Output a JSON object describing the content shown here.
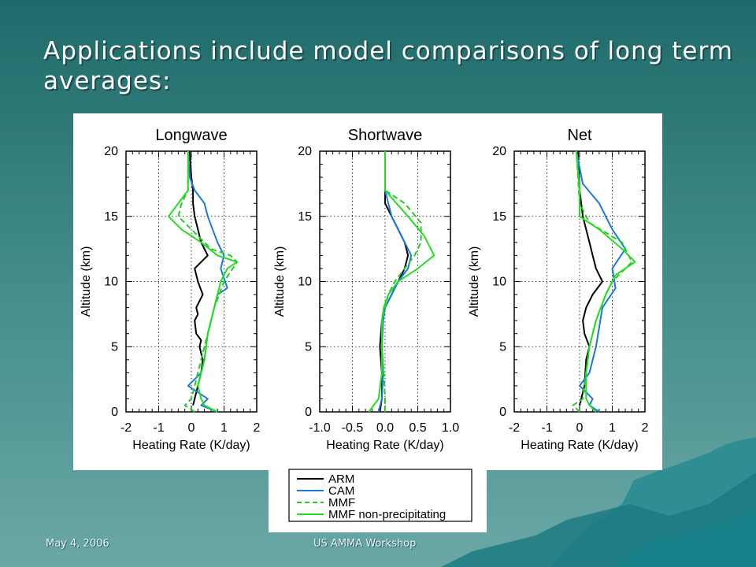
{
  "slide": {
    "title": "Applications include model comparisons of long term averages:",
    "footer_date": "May 4, 2006",
    "footer_event": "US AMMA Workshop"
  },
  "colors": {
    "ARM": "#000000",
    "CAM": "#1a78e0",
    "MMF": "#22cc22",
    "MMF non-precipitating": "#22dd22"
  },
  "chart_data": [
    {
      "type": "line",
      "title": "Longwave",
      "xlabel": "Heating Rate (K/day)",
      "ylabel": "Altitude (km)",
      "xlim": [
        -2,
        2
      ],
      "ylim": [
        0,
        20
      ],
      "xticks": [
        -2,
        -1,
        0,
        1,
        2
      ],
      "xtick_labels": [
        "-2",
        "-1",
        "0",
        "1",
        "2"
      ],
      "yticks": [
        0,
        5,
        10,
        15,
        20
      ],
      "yticks_labels": [
        "0",
        "5",
        "10",
        "15",
        "20"
      ],
      "grid": true,
      "series": [
        {
          "name": "ARM",
          "style": "solid",
          "color": "#000000",
          "x": [
            0.05,
            0.1,
            0.2,
            0.3,
            0.35,
            0.3,
            0.25,
            0.3,
            0.15,
            0.1,
            0.2,
            0.15,
            0.35,
            0.2,
            0.1,
            0.5,
            0.3,
            0.2,
            0.1,
            0.05,
            0.05,
            0.0,
            -0.05
          ],
          "y": [
            0.5,
            1,
            2,
            3,
            4,
            4.5,
            5,
            5.5,
            6,
            7,
            7.5,
            8,
            9,
            10,
            11,
            12,
            13,
            14,
            15,
            16,
            17,
            18,
            20
          ]
        },
        {
          "name": "CAM",
          "style": "solid",
          "color": "#1a78e0",
          "x": [
            0.8,
            0.3,
            0.5,
            0.2,
            -0.1,
            0.3,
            0.4,
            0.5,
            0.7,
            0.8,
            1.1,
            0.9,
            1.0,
            0.8,
            0.5,
            0.4,
            0.1,
            -0.05,
            -0.1
          ],
          "y": [
            0,
            0.5,
            1,
            1.5,
            2,
            3,
            4,
            6,
            8,
            9,
            9.5,
            11,
            12,
            13,
            15,
            16,
            17,
            18,
            20
          ]
        },
        {
          "name": "MMF",
          "style": "dashed",
          "color": "#22cc22",
          "x": [
            0.1,
            -0.2,
            0.0,
            0.1,
            0.2,
            0.3,
            0.5,
            0.7,
            1.0,
            1.4,
            1.2,
            0.6,
            0.0,
            -0.4,
            -0.3,
            -0.1,
            -0.1
          ],
          "y": [
            0,
            0.5,
            1,
            2,
            3,
            4,
            6,
            8,
            10,
            11.5,
            12,
            12.5,
            14,
            15,
            16,
            17,
            20
          ]
        },
        {
          "name": "MMF non-precipitating",
          "style": "solid",
          "color": "#22dd22",
          "x": [
            0.8,
            0.4,
            0.3,
            0.2,
            0.3,
            0.4,
            0.5,
            0.7,
            0.9,
            1.1,
            1.4,
            0.8,
            0.3,
            -0.3,
            -0.7,
            -0.4,
            -0.1,
            -0.1
          ],
          "y": [
            0,
            0.5,
            1,
            2,
            3,
            4,
            6,
            8,
            10,
            11,
            11.5,
            12,
            13,
            14,
            15,
            16,
            17,
            20
          ]
        }
      ]
    },
    {
      "type": "line",
      "title": "Shortwave",
      "xlabel": "Heating Rate (K/day)",
      "ylabel": "Altitude (km)",
      "xlim": [
        -1.0,
        1.0
      ],
      "ylim": [
        0,
        20
      ],
      "xticks": [
        -1.0,
        -0.5,
        0.0,
        0.5,
        1.0
      ],
      "xtick_labels": [
        "-1.0",
        "-0.5",
        "0.0",
        "0.5",
        "1.0"
      ],
      "yticks": [
        0,
        5,
        10,
        15,
        20
      ],
      "yticks_labels": [
        "0",
        "5",
        "10",
        "15",
        "20"
      ],
      "grid": true,
      "series": [
        {
          "name": "ARM",
          "style": "solid",
          "color": "#000000",
          "x": [
            -0.08,
            -0.05,
            -0.05,
            -0.08,
            -0.05,
            0.0,
            0.1,
            0.2,
            0.3,
            0.35,
            0.3,
            0.2,
            0.1,
            0.0,
            0.0,
            0.0
          ],
          "y": [
            0,
            1,
            3,
            5,
            7,
            8,
            9,
            10,
            11,
            12,
            13,
            14,
            15,
            16,
            17,
            20
          ]
        },
        {
          "name": "CAM",
          "style": "solid",
          "color": "#1a78e0",
          "x": [
            -0.1,
            -0.05,
            -0.03,
            -0.05,
            -0.03,
            0.0,
            0.1,
            0.2,
            0.35,
            0.4,
            0.3,
            0.1,
            0.0,
            0.0
          ],
          "y": [
            0,
            1,
            3,
            5,
            7,
            8,
            9,
            10,
            11,
            12,
            13,
            15,
            17,
            20
          ]
        },
        {
          "name": "MMF",
          "style": "dashed",
          "color": "#22cc22",
          "x": [
            0.0,
            0.0,
            -0.02,
            -0.05,
            -0.05,
            0.0,
            0.05,
            0.15,
            0.3,
            0.45,
            0.55,
            0.55,
            0.3,
            0.0,
            0.0
          ],
          "y": [
            0,
            1,
            3,
            5,
            7,
            8,
            9,
            10,
            11,
            12,
            13,
            14.5,
            16,
            17,
            20
          ]
        },
        {
          "name": "MMF non-precipitating",
          "style": "solid",
          "color": "#22dd22",
          "x": [
            -0.25,
            -0.1,
            -0.05,
            -0.05,
            -0.05,
            -0.02,
            0.05,
            0.2,
            0.5,
            0.75,
            0.6,
            0.35,
            0.0,
            0.0
          ],
          "y": [
            0,
            1,
            3,
            5,
            7,
            8,
            9,
            10,
            11,
            12,
            13.5,
            15,
            17,
            20
          ]
        }
      ]
    },
    {
      "type": "line",
      "title": "Net",
      "xlabel": "Heating Rate (K/day)",
      "ylabel": "Altitude (km)",
      "xlim": [
        -2,
        2
      ],
      "ylim": [
        0,
        20
      ],
      "xticks": [
        -2,
        -1,
        0,
        1,
        2
      ],
      "xtick_labels": [
        "-2",
        "-1",
        "0",
        "1",
        "2"
      ],
      "yticks": [
        0,
        5,
        10,
        15,
        20
      ],
      "yticks_labels": [
        "0",
        "5",
        "10",
        "15",
        "20"
      ],
      "grid": true,
      "series": [
        {
          "name": "ARM",
          "style": "solid",
          "color": "#000000",
          "x": [
            0.0,
            0.05,
            0.15,
            0.2,
            0.3,
            0.15,
            0.1,
            0.2,
            0.4,
            0.7,
            0.5,
            0.4,
            0.3,
            0.1,
            0.0,
            -0.05
          ],
          "y": [
            0.5,
            1,
            2,
            4,
            5,
            6,
            7,
            8,
            9,
            10,
            11,
            12,
            13,
            15,
            17,
            20
          ]
        },
        {
          "name": "CAM",
          "style": "solid",
          "color": "#1a78e0",
          "x": [
            0.6,
            0.3,
            0.4,
            0.0,
            0.3,
            0.5,
            0.7,
            1.1,
            1.0,
            1.4,
            1.0,
            0.6,
            0.1,
            -0.1
          ],
          "y": [
            0,
            0.5,
            1,
            2,
            3,
            5,
            8,
            9.5,
            11,
            12.5,
            14,
            16,
            17.5,
            20
          ]
        },
        {
          "name": "MMF",
          "style": "dashed",
          "color": "#22cc22",
          "x": [
            0.0,
            -0.2,
            0.1,
            0.2,
            0.3,
            0.5,
            0.8,
            1.0,
            1.6,
            1.3,
            0.3,
            0.0,
            -0.1
          ],
          "y": [
            0,
            0.5,
            1,
            3,
            5,
            7,
            9,
            10,
            11.5,
            13,
            14.5,
            16,
            20
          ]
        },
        {
          "name": "MMF non-precipitating",
          "style": "solid",
          "color": "#22dd22",
          "x": [
            0.5,
            0.3,
            0.2,
            0.2,
            0.3,
            0.5,
            0.8,
            1.1,
            1.7,
            1.3,
            0.6,
            0.0,
            0.0,
            -0.1
          ],
          "y": [
            0,
            0.5,
            1,
            3,
            5,
            7,
            9,
            10.5,
            11.5,
            12.5,
            14,
            15,
            17,
            20
          ]
        }
      ]
    }
  ],
  "legend": {
    "entries": [
      {
        "label": "ARM",
        "style": "solid",
        "color": "#000000"
      },
      {
        "label": "CAM",
        "style": "solid",
        "color": "#1a78e0"
      },
      {
        "label": "MMF",
        "style": "dashed",
        "color": "#22cc22"
      },
      {
        "label": "MMF non-precipitating",
        "style": "solid",
        "color": "#22dd22"
      }
    ]
  }
}
